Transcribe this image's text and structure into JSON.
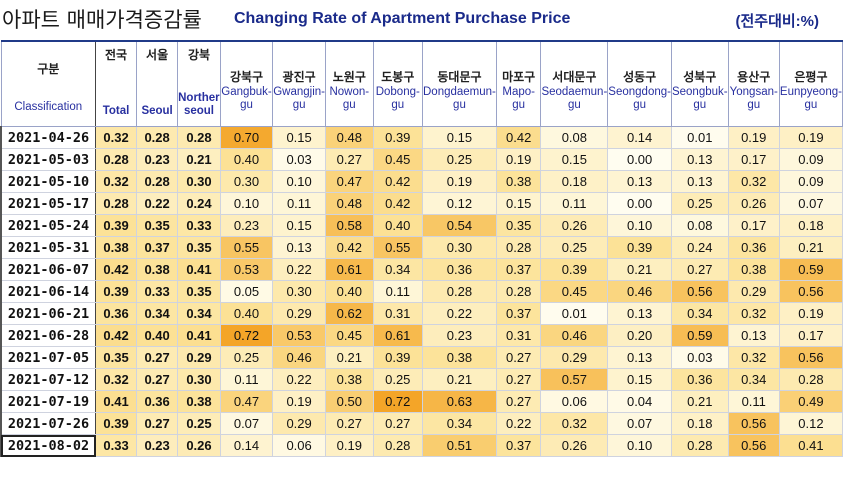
{
  "title": {
    "korean": "아파트 매매가격증감률",
    "english": "Changing Rate of Apartment Purchase Price",
    "unit": "(전주대비:%)"
  },
  "columns": [
    {
      "ko": "구분",
      "en": "Classification",
      "kind": "class"
    },
    {
      "ko": "전국",
      "en": "Total",
      "kind": "main"
    },
    {
      "ko": "서울",
      "en": "Seoul",
      "kind": "main"
    },
    {
      "ko": "강북",
      "en": "Northern seoul",
      "kind": "main"
    },
    {
      "ko": "강북구",
      "en": "Gangbuk-gu",
      "kind": "gu"
    },
    {
      "ko": "광진구",
      "en": "Gwangjin-gu",
      "kind": "gu"
    },
    {
      "ko": "노원구",
      "en": "Nowon-gu",
      "kind": "gu"
    },
    {
      "ko": "도봉구",
      "en": "Dobong-gu",
      "kind": "gu"
    },
    {
      "ko": "동대문구",
      "en": "Dongdaemun-gu",
      "kind": "gu"
    },
    {
      "ko": "마포구",
      "en": "Mapo-gu",
      "kind": "gu"
    },
    {
      "ko": "서대문구",
      "en": "Seodaemun-gu",
      "kind": "gu"
    },
    {
      "ko": "성동구",
      "en": "Seongdong-gu",
      "kind": "gu"
    },
    {
      "ko": "성북구",
      "en": "Seongbuk-gu",
      "kind": "gu"
    },
    {
      "ko": "용산구",
      "en": "Yongsan-gu",
      "kind": "gu"
    },
    {
      "ko": "은평구",
      "en": "Eunpyeong-gu",
      "kind": "gu"
    }
  ],
  "rows": [
    {
      "date": "2021-04-26",
      "values": [
        "0.32",
        "0.28",
        "0.28",
        "0.70",
        "0.15",
        "0.48",
        "0.39",
        "0.15",
        "0.42",
        "0.08",
        "0.14",
        "0.01",
        "0.19",
        "0.19"
      ]
    },
    {
      "date": "2021-05-03",
      "values": [
        "0.28",
        "0.23",
        "0.21",
        "0.40",
        "0.03",
        "0.27",
        "0.45",
        "0.25",
        "0.19",
        "0.15",
        "0.00",
        "0.13",
        "0.17",
        "0.09"
      ]
    },
    {
      "date": "2021-05-10",
      "values": [
        "0.32",
        "0.28",
        "0.30",
        "0.30",
        "0.10",
        "0.47",
        "0.42",
        "0.19",
        "0.38",
        "0.18",
        "0.13",
        "0.13",
        "0.32",
        "0.09"
      ]
    },
    {
      "date": "2021-05-17",
      "values": [
        "0.28",
        "0.22",
        "0.24",
        "0.10",
        "0.11",
        "0.48",
        "0.42",
        "0.12",
        "0.15",
        "0.11",
        "0.00",
        "0.25",
        "0.26",
        "0.07"
      ]
    },
    {
      "date": "2021-05-24",
      "values": [
        "0.39",
        "0.35",
        "0.33",
        "0.23",
        "0.15",
        "0.58",
        "0.40",
        "0.54",
        "0.35",
        "0.26",
        "0.10",
        "0.08",
        "0.17",
        "0.18"
      ]
    },
    {
      "date": "2021-05-31",
      "values": [
        "0.38",
        "0.37",
        "0.35",
        "0.55",
        "0.13",
        "0.42",
        "0.55",
        "0.30",
        "0.28",
        "0.25",
        "0.39",
        "0.24",
        "0.36",
        "0.21"
      ]
    },
    {
      "date": "2021-06-07",
      "values": [
        "0.42",
        "0.38",
        "0.41",
        "0.53",
        "0.22",
        "0.61",
        "0.34",
        "0.36",
        "0.37",
        "0.39",
        "0.21",
        "0.27",
        "0.38",
        "0.59"
      ]
    },
    {
      "date": "2021-06-14",
      "values": [
        "0.39",
        "0.33",
        "0.35",
        "0.05",
        "0.30",
        "0.40",
        "0.11",
        "0.28",
        "0.28",
        "0.45",
        "0.46",
        "0.56",
        "0.29",
        "0.56"
      ]
    },
    {
      "date": "2021-06-21",
      "values": [
        "0.36",
        "0.34",
        "0.34",
        "0.40",
        "0.29",
        "0.62",
        "0.31",
        "0.22",
        "0.37",
        "0.01",
        "0.13",
        "0.34",
        "0.32",
        "0.19"
      ]
    },
    {
      "date": "2021-06-28",
      "values": [
        "0.42",
        "0.40",
        "0.41",
        "0.72",
        "0.53",
        "0.45",
        "0.61",
        "0.23",
        "0.31",
        "0.46",
        "0.20",
        "0.59",
        "0.13",
        "0.17"
      ]
    },
    {
      "date": "2021-07-05",
      "values": [
        "0.35",
        "0.27",
        "0.29",
        "0.25",
        "0.46",
        "0.21",
        "0.39",
        "0.38",
        "0.27",
        "0.29",
        "0.13",
        "0.03",
        "0.32",
        "0.56"
      ]
    },
    {
      "date": "2021-07-12",
      "values": [
        "0.32",
        "0.27",
        "0.30",
        "0.11",
        "0.22",
        "0.38",
        "0.25",
        "0.21",
        "0.27",
        "0.57",
        "0.15",
        "0.36",
        "0.34",
        "0.28"
      ]
    },
    {
      "date": "2021-07-19",
      "values": [
        "0.41",
        "0.36",
        "0.38",
        "0.47",
        "0.19",
        "0.50",
        "0.72",
        "0.63",
        "0.27",
        "0.06",
        "0.04",
        "0.21",
        "0.11",
        "0.49"
      ]
    },
    {
      "date": "2021-07-26",
      "values": [
        "0.39",
        "0.27",
        "0.25",
        "0.07",
        "0.29",
        "0.27",
        "0.27",
        "0.34",
        "0.22",
        "0.32",
        "0.07",
        "0.18",
        "0.56",
        "0.12"
      ]
    },
    {
      "date": "2021-08-02",
      "values": [
        "0.33",
        "0.23",
        "0.26",
        "0.14",
        "0.06",
        "0.19",
        "0.28",
        "0.51",
        "0.37",
        "0.26",
        "0.10",
        "0.28",
        "0.56",
        "0.41"
      ]
    }
  ],
  "colors": {
    "title_blue": "#1a2a8a",
    "header_en_blue": "#2830a0",
    "heat_low": "#fffdf6",
    "heat_mid": "#fde7a6",
    "heat_high": "#f8b93c",
    "heat_max": "#f39a1e"
  }
}
